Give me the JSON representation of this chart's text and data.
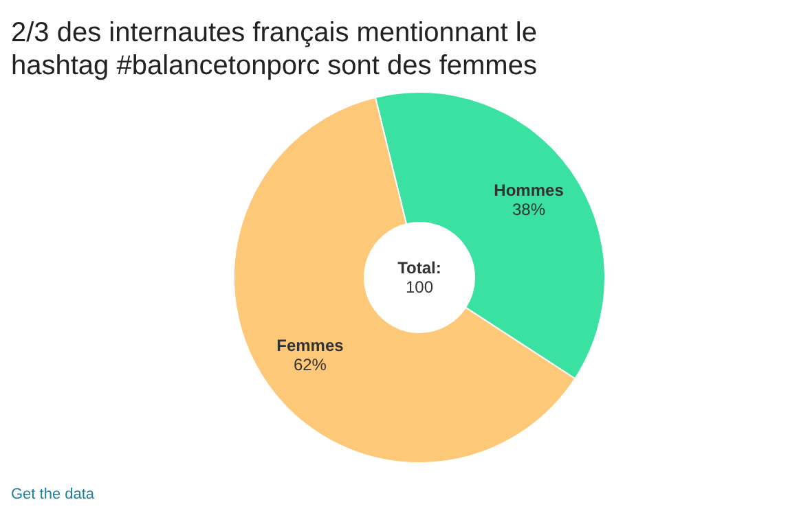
{
  "chart_data": {
    "type": "donut",
    "title": "2/3 des internautes français mentionnant le hashtag #balancetonporc sont des femmes",
    "categories": [
      "Hommes",
      "Femmes"
    ],
    "values": [
      38,
      62
    ],
    "value_labels": [
      "38%",
      "62%"
    ],
    "colors": [
      "#3ae1a0",
      "#fdc878"
    ],
    "annotations": [
      "Total:",
      "100",
      "Get the data"
    ]
  }
}
